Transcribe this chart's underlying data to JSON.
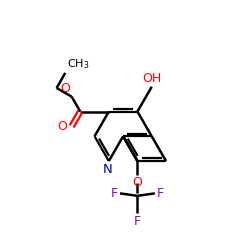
{
  "bg_color": "#ffffff",
  "bond_color": "#000000",
  "N_color": "#0000cc",
  "O_color": "#ff0000",
  "F_color": "#9900bb",
  "figsize": [
    2.5,
    2.5
  ],
  "dpi": 100,
  "xlim": [
    0,
    10
  ],
  "ylim": [
    0,
    10
  ]
}
